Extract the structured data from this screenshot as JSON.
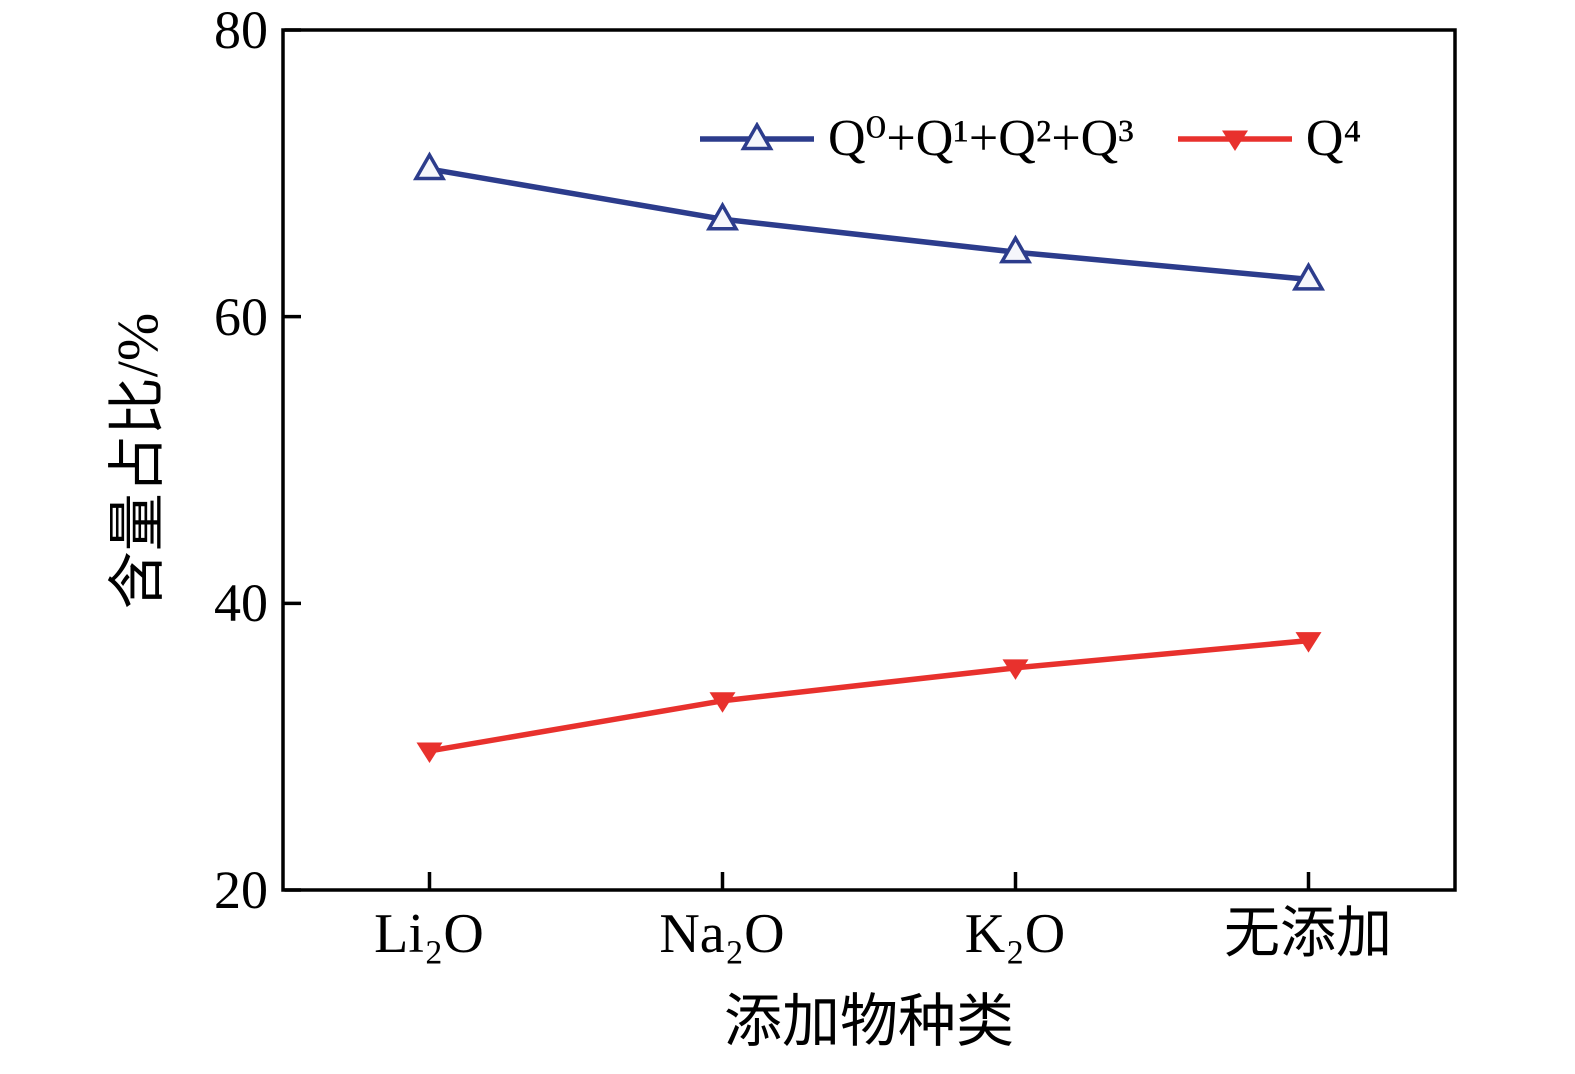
{
  "chart_data": {
    "type": "line",
    "title": "",
    "xlabel": "添加物种类",
    "ylabel": "含量占比/%",
    "categories": [
      "Li₂O",
      "Na₂O",
      "K₂O",
      "无添加"
    ],
    "series": [
      {
        "name": "Q⁰+Q¹+Q²+Q³",
        "marker": "triangle-up-hollow",
        "color": "#2c3c8c",
        "values": [
          70.3,
          66.8,
          64.5,
          62.6
        ]
      },
      {
        "name": "Q⁴",
        "marker": "triangle-down-filled",
        "color": "#e8312d",
        "values": [
          29.7,
          33.2,
          35.5,
          37.4
        ]
      }
    ],
    "ylim": [
      20,
      80
    ],
    "yticks": [
      20,
      40,
      60,
      80
    ],
    "grid": false,
    "legend_position": "top-inside",
    "axis_color": "#000000",
    "marker_hollow_fill": "#f5f6fb"
  }
}
